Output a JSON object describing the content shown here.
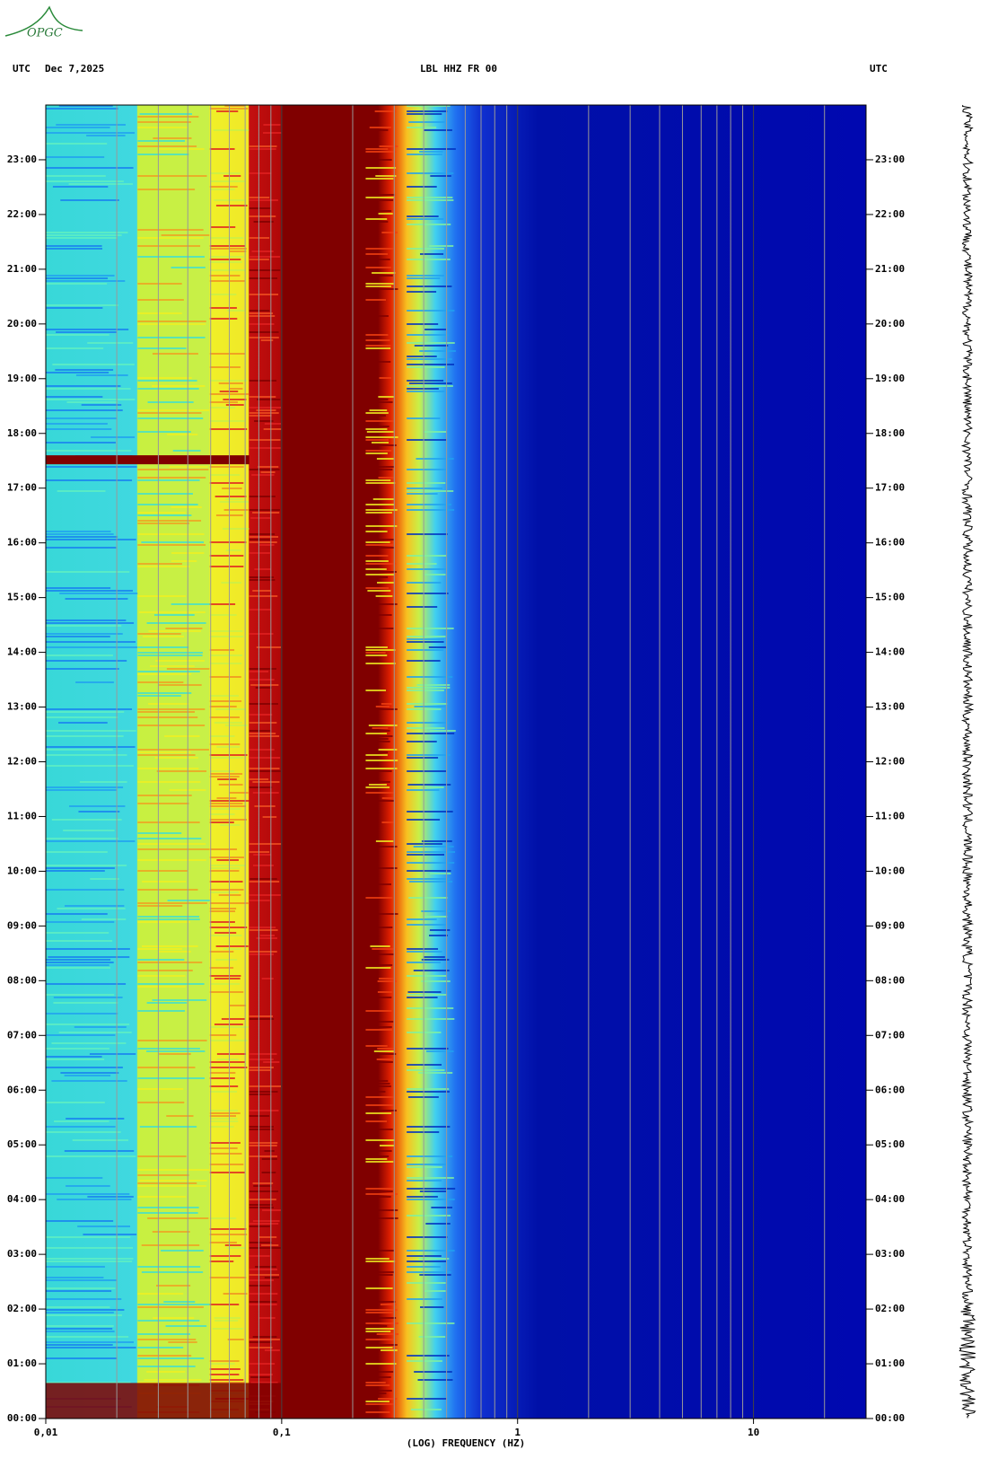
{
  "logo": "OPGC",
  "chart_data": {
    "type": "spectrogram",
    "title": "LBL HHZ FR 00",
    "time_zone": "UTC",
    "date": "Dec 7,2025",
    "x_label": "(LOG) FREQUENCY (HZ)",
    "xscale": "log",
    "xlim": [
      0.01,
      30
    ],
    "xticks": [
      {
        "value": 0.01,
        "label": "0,01"
      },
      {
        "value": 0.1,
        "label": "0,1"
      },
      1,
      10
    ],
    "ylim": [
      0,
      24
    ],
    "yticks": [
      {
        "value": 0,
        "label": "00:00"
      },
      {
        "value": 1,
        "label": "01:00"
      },
      {
        "value": 2,
        "label": "02:00"
      },
      {
        "value": 3,
        "label": "03:00"
      },
      {
        "value": 4,
        "label": "04:00"
      },
      {
        "value": 5,
        "label": "05:00"
      },
      {
        "value": 6,
        "label": "06:00"
      },
      {
        "value": 7,
        "label": "07:00"
      },
      {
        "value": 8,
        "label": "08:00"
      },
      {
        "value": 9,
        "label": "09:00"
      },
      {
        "value": 10,
        "label": "10:00"
      },
      {
        "value": 11,
        "label": "11:00"
      },
      {
        "value": 12,
        "label": "12:00"
      },
      {
        "value": 13,
        "label": "13:00"
      },
      {
        "value": 14,
        "label": "14:00"
      },
      {
        "value": 15,
        "label": "15:00"
      },
      {
        "value": 16,
        "label": "16:00"
      },
      {
        "value": 17,
        "label": "17:00"
      },
      {
        "value": 18,
        "label": "18:00"
      },
      {
        "value": 19,
        "label": "19:00"
      },
      {
        "value": 20,
        "label": "20:00"
      },
      {
        "value": 21,
        "label": "21:00"
      },
      {
        "value": 22,
        "label": "22:00"
      },
      {
        "value": 23,
        "label": "23:00"
      }
    ],
    "grid": true
  }
}
